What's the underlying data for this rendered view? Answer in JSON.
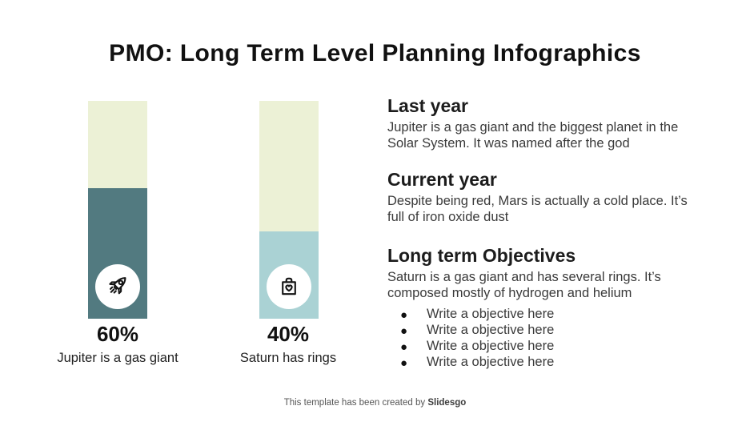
{
  "slide": {
    "title": "PMO: Long Term Level Planning Infographics",
    "footer": {
      "text": "This template has been created by ",
      "brand": "Slidesgo"
    }
  },
  "bars": [
    {
      "percent_label": "60%",
      "caption": "Jupiter is a gas giant",
      "value": 60,
      "fill_color": "#527a80",
      "icon": "rocket-icon"
    },
    {
      "percent_label": "40%",
      "caption": "Saturn has rings",
      "value": 40,
      "fill_color": "#aad2d4",
      "icon": "bag-heart-icon"
    }
  ],
  "sections": [
    {
      "heading": "Last year",
      "body": "Jupiter is a gas giant and the biggest planet in the Solar System. It was named after the god"
    },
    {
      "heading": "Current year",
      "body": "Despite being red, Mars is actually a cold place. It’s full of iron oxide dust"
    },
    {
      "heading": "Long term Objectives",
      "body": "Saturn is a gas giant and has several rings. It’s composed mostly of hydrogen and helium"
    }
  ],
  "objectives": [
    "Write a objective here",
    "Write a objective here",
    "Write a objective here",
    "Write a objective here"
  ],
  "colors": {
    "bar_track": "#ecf1d6",
    "bar_fill_dark_teal": "#527a80",
    "bar_fill_light_blue": "#aad2d4",
    "background": "#ffffff",
    "text_dark": "#111111"
  },
  "chart_data": {
    "type": "bar",
    "categories": [
      "Jupiter is a gas giant",
      "Saturn has rings"
    ],
    "values": [
      60,
      40
    ],
    "value_labels": [
      "60%",
      "40%"
    ],
    "title": "PMO: Long Term Level Planning Infographics",
    "xlabel": "",
    "ylabel": "",
    "ylim": [
      0,
      100
    ],
    "grid": false,
    "legend": "none",
    "notes": "Two vertical progress bars on pale-green tracks; 60% bar filled dark teal with rocket badge, 40% bar filled light blue with shopping-bag-heart badge"
  }
}
